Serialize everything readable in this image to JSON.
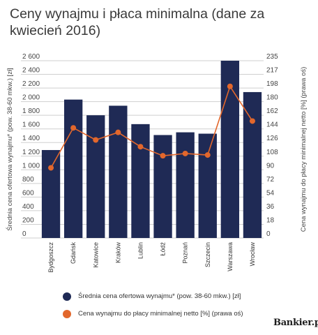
{
  "title": "Ceny wynajmu i płaca minimalna (dane za kwiecień 2016)",
  "source_logo": "Bankier.pl",
  "chart_data": {
    "type": "bar",
    "categories": [
      "Bydgoszcz",
      "Gdańsk",
      "Katowice",
      "Kraków",
      "Lublin",
      "Łódź",
      "Poznań",
      "Szczecin",
      "Warszawa",
      "Wrocław"
    ],
    "series": [
      {
        "name": "Średnia cena ofertowa wynajmu* (pow. 38-60 mkw.) [zł]",
        "type": "bar",
        "axis": "left",
        "color": "#1f2a55",
        "values": [
          1290,
          2030,
          1800,
          1940,
          1670,
          1510,
          1550,
          1530,
          2600,
          2140
        ]
      },
      {
        "name": "Cena wynajmu do płacy minimalnej netto [%] (prawa oś)",
        "type": "line",
        "axis": "right",
        "color": "#e2672c",
        "values": [
          93,
          146,
          130,
          140,
          121,
          109,
          112,
          110,
          201,
          155
        ]
      }
    ],
    "ylabel": "Średnia cena ofertowa wynajmu* (pow. 38-60 mkw.) [zł]",
    "y2label": "Cena wynajmu do płacy minimalnej netto [%] (prawa oś)",
    "ylim": [
      0,
      2600
    ],
    "y2lim": [
      0,
      235
    ],
    "y_ticks": [
      "2 600",
      "2 400",
      "2 200",
      "2 000",
      "1 800",
      "1 600",
      "1 400",
      "1 200",
      "1 000",
      "800",
      "600",
      "400",
      "200",
      "0"
    ],
    "y2_ticks": [
      "235",
      "217",
      "198",
      "180",
      "162",
      "144",
      "126",
      "108",
      "90",
      "72",
      "54",
      "36",
      "18",
      "0"
    ],
    "grid": true,
    "legend_position": "bottom"
  }
}
